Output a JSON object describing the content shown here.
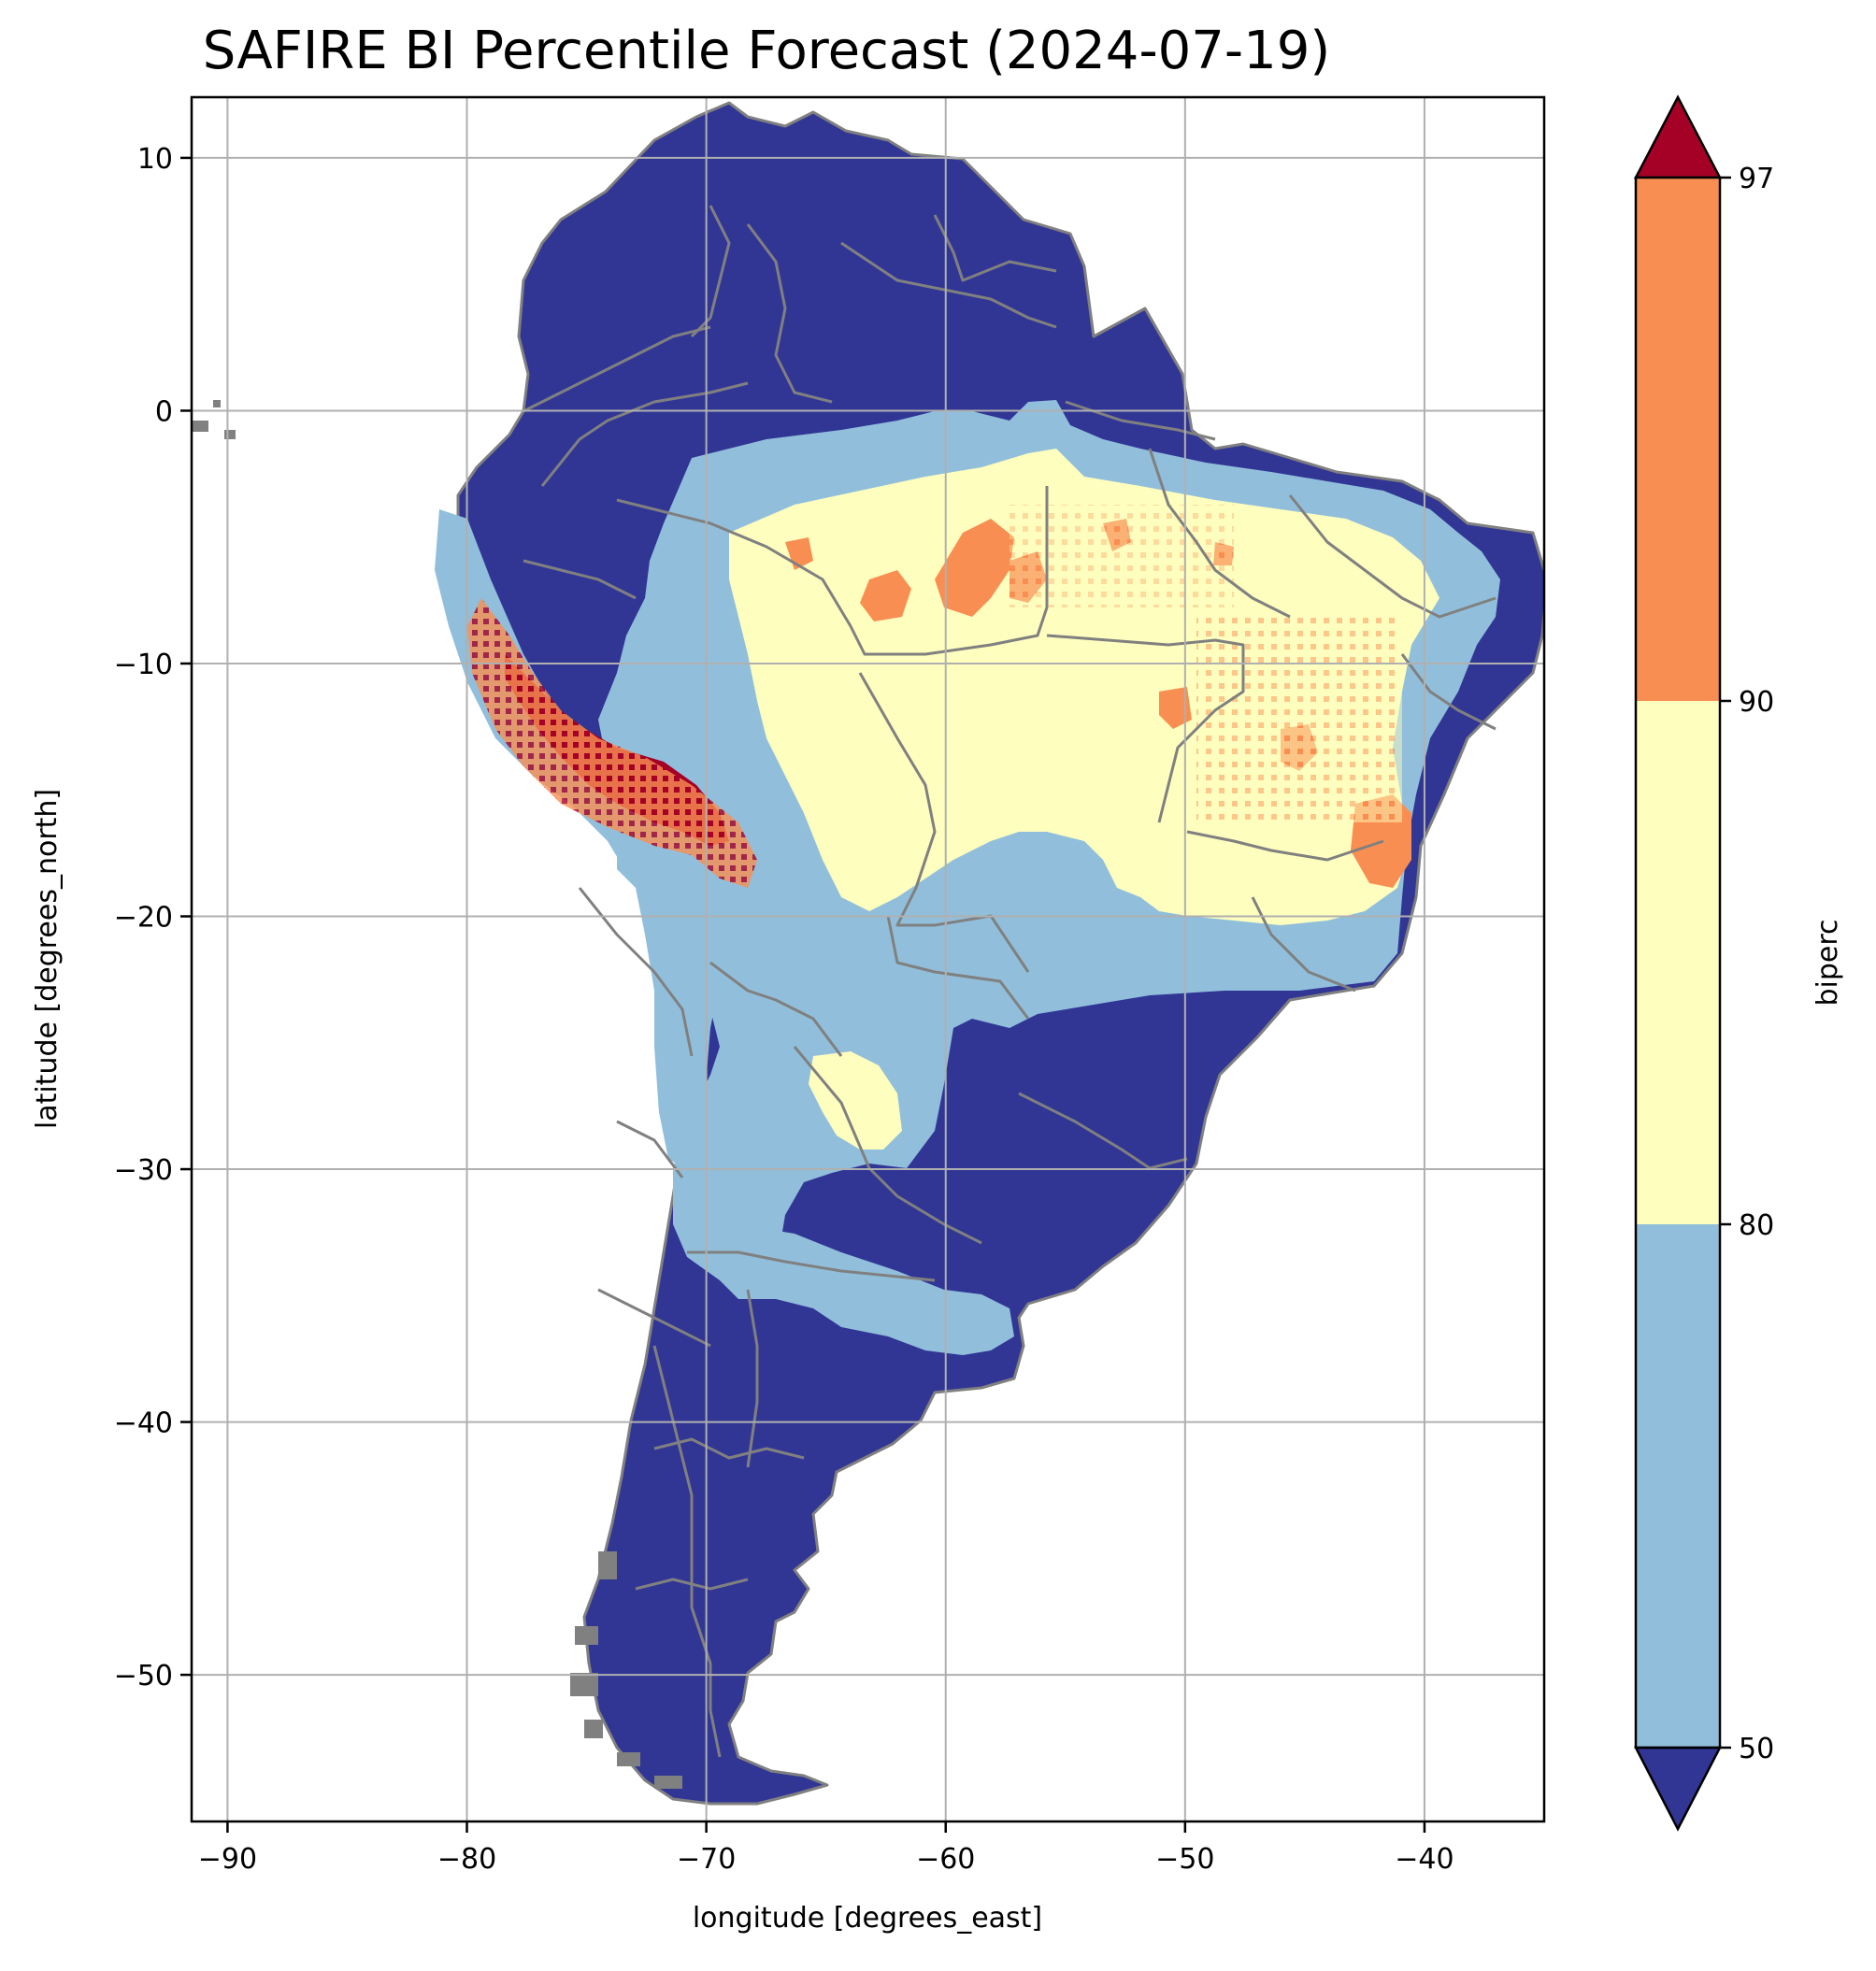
{
  "title": "SAFIRE BI Percentile Forecast (2024-07-19)",
  "chart_data": {
    "type": "heatmap",
    "title": "SAFIRE BI Percentile Forecast (2024-07-19)",
    "xlabel": "longitude [degrees_east]",
    "ylabel": "latitude [degrees_north]",
    "xlim": [
      -91.5,
      -35.0
    ],
    "ylim": [
      -55.8,
      12.4
    ],
    "x_ticks": [
      -90,
      -80,
      -70,
      -60,
      -50,
      -40
    ],
    "y_ticks": [
      10,
      0,
      -10,
      -20,
      -30,
      -40,
      -50
    ],
    "x_tick_labels": [
      "−90",
      "−80",
      "−70",
      "−60",
      "−50",
      "−40"
    ],
    "y_tick_labels": [
      "10",
      "0",
      "−10",
      "−20",
      "−30",
      "−40",
      "−50"
    ],
    "grid": true,
    "colorbar": {
      "label": "biperc",
      "levels": [
        50,
        80,
        90,
        97
      ],
      "tick_labels": [
        "50",
        "80",
        "90",
        "97"
      ],
      "extend": "both",
      "colors": {
        "under_50": "#313695",
        "50_80": "#91bfdb",
        "80_90": "#fefebe",
        "90_97": "#f98e52",
        "over_97": "#a50026"
      }
    },
    "boundary_color": "#808080",
    "regions": [
      {
        "class": "below 50",
        "desc": "northern South America and Amazon basin (north)"
      },
      {
        "class": "50-80",
        "desc": "central Brazil belt, lat about -3 to -25"
      },
      {
        "class": "80-90",
        "desc": "interior Brazil core, lat about -5 to -20"
      },
      {
        "class": "90-97",
        "desc": "scattered patches in Brazil and southern Peru"
      },
      {
        "class": "above 97",
        "desc": "Andes of southern Peru and Bolivia, lat about -13 to -17"
      }
    ]
  }
}
